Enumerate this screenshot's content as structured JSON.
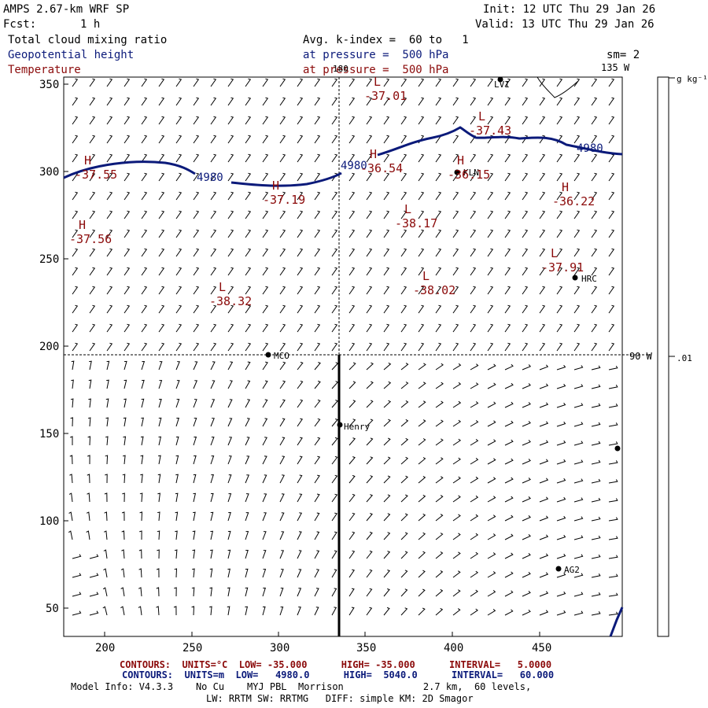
{
  "header": {
    "model": "AMPS 2.67-km WRF SP",
    "init": "Init: 12 UTC Thu 29 Jan 26",
    "fcst_label": "Fcst:",
    "fcst_value": "1 h",
    "valid": "Valid: 13 UTC Thu 29 Jan 26",
    "field1": "Total cloud mixing ratio",
    "field2": "Geopotential height",
    "field3": "Temperature",
    "avg_k": "Avg. k-index =  60 to   1",
    "pressure1": "at pressure =  500 hPa",
    "pressure2": "at pressure =  500 hPa",
    "sm": "sm= 2"
  },
  "map": {
    "x_ticks": [
      "200",
      "250",
      "300",
      "350",
      "400",
      "450"
    ],
    "y_ticks": [
      "350",
      "300",
      "250",
      "200",
      "150",
      "100",
      "50"
    ],
    "lon_labels": {
      "top_mid": "180",
      "top_right": "135 W",
      "right_mid": "90 W"
    },
    "colorbar": {
      "unit": "g kg⁻¹",
      "value": ".01"
    },
    "stations": [
      "MCO",
      "KLN",
      "HRC",
      "Henry",
      "AG2",
      "LVI"
    ],
    "height_labels": [
      "4980",
      "4980",
      "4980"
    ],
    "temp_centers": [
      {
        "type": "H",
        "value": "-37.55"
      },
      {
        "type": "H",
        "value": "-37.56"
      },
      {
        "type": "H",
        "value": "-37.19"
      },
      {
        "type": "L",
        "value": "-38.32"
      },
      {
        "type": "L",
        "value": "-37.01"
      },
      {
        "type": "H",
        "value": "-36.54"
      },
      {
        "type": "H",
        "value": "-36.15"
      },
      {
        "type": "L",
        "value": "-37.43"
      },
      {
        "type": "L",
        "value": "-38.17"
      },
      {
        "type": "L",
        "value": "-38.02"
      },
      {
        "type": "H",
        "value": "-36.22"
      },
      {
        "type": "L",
        "value": "-37.91"
      }
    ]
  },
  "footer": {
    "contours_temp": "CONTOURS:  UNITS=°C  LOW= -35.000      HIGH= -35.000      INTERVAL=   5.0000",
    "contours_height": "CONTOURS:  UNITS=m  LOW=   4980.0      HIGH=  5040.0      INTERVAL=   60.000",
    "model_info": "Model Info: V4.3.3    No Cu    MYJ PBL  Morrison              2.7 km,  60 levels,",
    "physics": "LW: RRTM SW: RRTMG   DIFF: simple KM: 2D Smagor"
  },
  "colors": {
    "height": "#0b1a7a",
    "temp": "#8b0a0a",
    "wind": "#000000"
  }
}
